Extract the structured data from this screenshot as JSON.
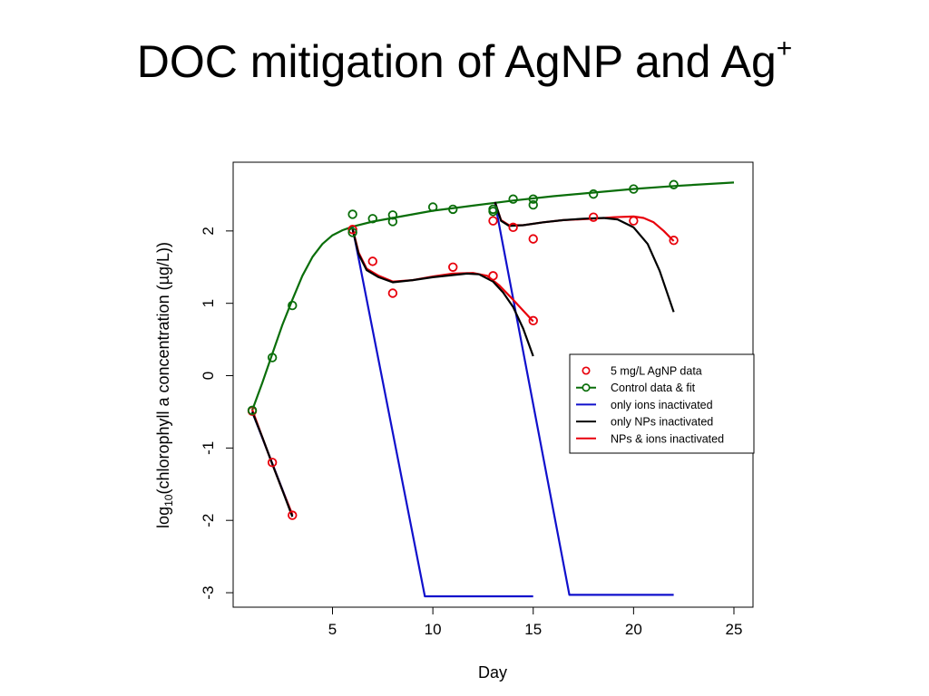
{
  "slide": {
    "title": "DOC mitigation of AgNP and Ag",
    "title_superscript": "+"
  },
  "chart_data": {
    "type": "scatter",
    "xlabel": "Day",
    "ylabel": "log",
    "ylabel_subscript": "10",
    "ylabel_rest": "(chlorophyll a concentration (µg/L))",
    "xlim": [
      0.05,
      25.95
    ],
    "ylim": [
      -3.2,
      2.95
    ],
    "x_ticks": [
      5,
      10,
      15,
      20,
      25
    ],
    "y_ticks": [
      -3,
      -2,
      -1,
      0,
      1,
      2
    ],
    "grid": false,
    "legend_position": "right",
    "legend": [
      {
        "label": "5 mg/L AgNP data",
        "kind": "point",
        "color": "#e8000b"
      },
      {
        "label": "Control data & fit",
        "kind": "point-line",
        "color": "#0a6e0a"
      },
      {
        "label": "only ions inactivated",
        "kind": "line",
        "color": "#1010cc"
      },
      {
        "label": "only NPs inactivated",
        "kind": "line",
        "color": "#000000"
      },
      {
        "label": "NPs & ions inactivated",
        "kind": "line",
        "color": "#e8000b"
      }
    ],
    "series": [
      {
        "name": "5 mg/L AgNP data",
        "kind": "points",
        "color": "#e8000b",
        "points": [
          [
            1,
            -0.49
          ],
          [
            2,
            -1.2
          ],
          [
            3,
            -1.93
          ],
          [
            6,
            2.02
          ],
          [
            7,
            1.58
          ],
          [
            8,
            1.14
          ],
          [
            11,
            1.5
          ],
          [
            13,
            1.38
          ],
          [
            15,
            0.76
          ],
          [
            13,
            2.14
          ],
          [
            14,
            2.05
          ],
          [
            15,
            1.89
          ],
          [
            18,
            2.19
          ],
          [
            20,
            2.14
          ],
          [
            22,
            1.87
          ]
        ]
      },
      {
        "name": "Control data & fit",
        "kind": "points",
        "color": "#0a6e0a",
        "points": [
          [
            1,
            -0.48
          ],
          [
            2,
            0.25
          ],
          [
            3,
            0.97
          ],
          [
            6,
            2.23
          ],
          [
            6,
            1.98
          ],
          [
            7,
            2.17
          ],
          [
            8,
            2.22
          ],
          [
            8,
            2.13
          ],
          [
            10,
            2.33
          ],
          [
            11,
            2.3
          ],
          [
            13,
            2.3
          ],
          [
            13,
            2.27
          ],
          [
            14,
            2.44
          ],
          [
            15,
            2.44
          ],
          [
            15,
            2.36
          ],
          [
            18,
            2.51
          ],
          [
            20,
            2.58
          ],
          [
            22,
            2.64
          ]
        ]
      },
      {
        "name": "Control data & fit",
        "kind": "line",
        "color": "#0a6e0a",
        "points": [
          [
            1,
            -0.48
          ],
          [
            1.5,
            -0.1
          ],
          [
            2,
            0.3
          ],
          [
            2.5,
            0.7
          ],
          [
            3,
            1.05
          ],
          [
            3.5,
            1.38
          ],
          [
            4,
            1.64
          ],
          [
            4.5,
            1.82
          ],
          [
            5,
            1.94
          ],
          [
            5.5,
            2.01
          ],
          [
            6,
            2.06
          ],
          [
            7,
            2.13
          ],
          [
            8,
            2.18
          ],
          [
            9,
            2.23
          ],
          [
            10,
            2.28
          ],
          [
            12,
            2.35
          ],
          [
            14,
            2.42
          ],
          [
            16,
            2.48
          ],
          [
            18,
            2.53
          ],
          [
            20,
            2.58
          ],
          [
            22,
            2.62
          ],
          [
            25,
            2.67
          ]
        ]
      },
      {
        "name": "only ions inactivated",
        "kind": "line",
        "color": "#1010cc",
        "points": [
          [
            1,
            -0.5
          ],
          [
            3,
            -1.93
          ]
        ]
      },
      {
        "name": "only ions inactivated",
        "kind": "line",
        "color": "#1010cc",
        "points": [
          [
            6,
            2.05
          ],
          [
            9.6,
            -3.05
          ],
          [
            15,
            -3.05
          ]
        ]
      },
      {
        "name": "only ions inactivated",
        "kind": "line",
        "color": "#1010cc",
        "points": [
          [
            13.1,
            2.38
          ],
          [
            16.8,
            -3.03
          ],
          [
            22,
            -3.03
          ]
        ]
      },
      {
        "name": "NPs & ions inactivated",
        "kind": "line",
        "color": "#e8000b",
        "points": [
          [
            1,
            -0.47
          ],
          [
            1.5,
            -0.85
          ],
          [
            2,
            -1.22
          ],
          [
            2.5,
            -1.58
          ],
          [
            3,
            -1.92
          ]
        ]
      },
      {
        "name": "NPs & ions inactivated",
        "kind": "line",
        "color": "#e8000b",
        "points": [
          [
            6,
            2.04
          ],
          [
            6.3,
            1.7
          ],
          [
            6.7,
            1.48
          ],
          [
            7.3,
            1.38
          ],
          [
            8,
            1.3
          ],
          [
            9,
            1.32
          ],
          [
            10,
            1.37
          ],
          [
            11,
            1.41
          ],
          [
            12,
            1.42
          ],
          [
            12.7,
            1.38
          ],
          [
            13.3,
            1.25
          ],
          [
            14,
            1.05
          ],
          [
            14.5,
            0.9
          ],
          [
            15,
            0.75
          ]
        ]
      },
      {
        "name": "NPs & ions inactivated",
        "kind": "line",
        "color": "#e8000b",
        "points": [
          [
            13.1,
            2.39
          ],
          [
            13.4,
            2.15
          ],
          [
            13.8,
            2.08
          ],
          [
            14.5,
            2.08
          ],
          [
            15.5,
            2.12
          ],
          [
            16.5,
            2.15
          ],
          [
            18,
            2.17
          ],
          [
            19,
            2.19
          ],
          [
            20,
            2.2
          ],
          [
            20.5,
            2.18
          ],
          [
            21,
            2.12
          ],
          [
            21.5,
            2.0
          ],
          [
            22,
            1.86
          ]
        ]
      },
      {
        "name": "only NPs inactivated",
        "kind": "line",
        "color": "#000000",
        "points": [
          [
            1,
            -0.5
          ],
          [
            1.5,
            -0.85
          ],
          [
            2,
            -1.22
          ],
          [
            2.5,
            -1.58
          ],
          [
            3,
            -1.95
          ]
        ]
      },
      {
        "name": "only NPs inactivated",
        "kind": "line",
        "color": "#000000",
        "points": [
          [
            6,
            2.02
          ],
          [
            6.3,
            1.68
          ],
          [
            6.7,
            1.46
          ],
          [
            7.3,
            1.36
          ],
          [
            8,
            1.29
          ],
          [
            9,
            1.32
          ],
          [
            10,
            1.36
          ],
          [
            11,
            1.39
          ],
          [
            11.7,
            1.41
          ],
          [
            12.3,
            1.4
          ],
          [
            13,
            1.3
          ],
          [
            13.5,
            1.15
          ],
          [
            14,
            0.95
          ],
          [
            14.5,
            0.65
          ],
          [
            15,
            0.27
          ]
        ]
      },
      {
        "name": "only NPs inactivated",
        "kind": "line",
        "color": "#000000",
        "points": [
          [
            13.1,
            2.4
          ],
          [
            13.4,
            2.14
          ],
          [
            13.8,
            2.07
          ],
          [
            14.5,
            2.08
          ],
          [
            15.5,
            2.12
          ],
          [
            16.5,
            2.15
          ],
          [
            17.5,
            2.17
          ],
          [
            18.5,
            2.18
          ],
          [
            19.2,
            2.16
          ],
          [
            20,
            2.05
          ],
          [
            20.7,
            1.82
          ],
          [
            21.3,
            1.45
          ],
          [
            22,
            0.88
          ]
        ]
      }
    ]
  }
}
